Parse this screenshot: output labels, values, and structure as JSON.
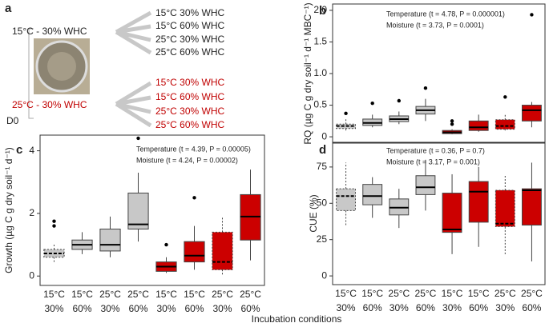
{
  "diagram": {
    "label": "a",
    "start": "D0",
    "sources": [
      "15°C - 30% WHC",
      "25°C - 30% WHC"
    ],
    "targets": [
      [
        "15°C 30% WHC",
        "15°C 60% WHC",
        "25°C 30% WHC",
        "25°C 60% WHC"
      ],
      [
        "15°C 30% WHC",
        "15°C 60% WHC",
        "25°C 30% WHC",
        "25°C 60% WHC"
      ]
    ]
  },
  "figure_xlabel": "Incubation conditions",
  "chart_data": [
    {
      "type": "box",
      "panel": "b",
      "ylabel": "RQ (µg C g dry soil⁻¹ d⁻¹ MBC⁻¹)",
      "annotations": [
        "Temperature (t = 4.78, P = 0.000001)",
        "Moisture (t = 3.73, P = 0.0001)"
      ],
      "ylim": [
        -0.1,
        2.1
      ],
      "yticks": [
        0,
        0.5,
        {
          "value": 1,
          "label": "1.0"
        },
        1.5,
        {
          "value": 2,
          "label": "2.0"
        }
      ],
      "boxes": [
        {
          "min": 0.1,
          "q1": 0.13,
          "median": 0.17,
          "q3": 0.2,
          "max": 0.28,
          "outliers": [
            0.37
          ],
          "color": "#c8c8c8",
          "dashed": true
        },
        {
          "min": 0.15,
          "q1": 0.18,
          "median": 0.22,
          "q3": 0.28,
          "max": 0.35,
          "outliers": [
            0.53
          ],
          "color": "#c8c8c8",
          "dashed": false
        },
        {
          "min": 0.2,
          "q1": 0.24,
          "median": 0.28,
          "q3": 0.33,
          "max": 0.4,
          "outliers": [
            0.57
          ],
          "color": "#c8c8c8",
          "dashed": false
        },
        {
          "min": 0.25,
          "q1": 0.36,
          "median": 0.42,
          "q3": 0.48,
          "max": 0.6,
          "outliers": [
            0.77
          ],
          "color": "#c8c8c8",
          "dashed": false
        },
        {
          "min": 0.04,
          "q1": 0.05,
          "median": 0.07,
          "q3": 0.1,
          "max": 0.12,
          "outliers": [
            0.2,
            0.25
          ],
          "color": "#cc0000",
          "dashed": false
        },
        {
          "min": 0.08,
          "q1": 0.1,
          "median": 0.15,
          "q3": 0.25,
          "max": 0.35,
          "outliers": [],
          "color": "#cc0000",
          "dashed": false
        },
        {
          "min": 0.1,
          "q1": 0.12,
          "median": 0.17,
          "q3": 0.27,
          "max": 0.35,
          "outliers": [
            0.63
          ],
          "color": "#cc0000",
          "dashed": true
        },
        {
          "min": 0.15,
          "q1": 0.25,
          "median": 0.42,
          "q3": 0.5,
          "max": 0.55,
          "outliers": [
            1.93
          ],
          "color": "#cc0000",
          "dashed": false
        }
      ]
    },
    {
      "type": "box",
      "panel": "c",
      "ylabel": "Growth (µg C g dry soil⁻¹ d⁻¹)",
      "annotations": [
        "Temperature (t = 4.39, P = 0.00005)",
        "Moisture (t = 4.24, P = 0.00002)"
      ],
      "ylim": [
        -0.3,
        4.5
      ],
      "yticks": [
        0,
        2,
        4
      ],
      "categories": [
        [
          "15°C",
          "30%"
        ],
        [
          "15°C",
          "60%"
        ],
        [
          "25°C",
          "30%"
        ],
        [
          "25°C",
          "60%"
        ],
        [
          "15°C",
          "30%"
        ],
        [
          "15°C",
          "60%"
        ],
        [
          "25°C",
          "30%"
        ],
        [
          "25°C",
          "60%"
        ]
      ],
      "boxes": [
        {
          "min": 0.45,
          "q1": 0.6,
          "median": 0.72,
          "q3": 0.85,
          "max": 1.05,
          "outliers": [
            1.6,
            1.75
          ],
          "color": "#c8c8c8",
          "dashed": true
        },
        {
          "min": 0.7,
          "q1": 0.85,
          "median": 1.0,
          "q3": 1.15,
          "max": 1.4,
          "outliers": [],
          "color": "#c8c8c8",
          "dashed": false
        },
        {
          "min": 0.6,
          "q1": 0.8,
          "median": 1.0,
          "q3": 1.5,
          "max": 1.9,
          "outliers": [],
          "color": "#c8c8c8",
          "dashed": false
        },
        {
          "min": 1.1,
          "q1": 1.5,
          "median": 1.65,
          "q3": 2.65,
          "max": 3.3,
          "outliers": [
            4.4
          ],
          "color": "#c8c8c8",
          "dashed": false
        },
        {
          "min": 0.1,
          "q1": 0.15,
          "median": 0.3,
          "q3": 0.45,
          "max": 0.6,
          "outliers": [
            1.0
          ],
          "color": "#cc0000",
          "dashed": false
        },
        {
          "min": 0.2,
          "q1": 0.45,
          "median": 0.65,
          "q3": 1.1,
          "max": 1.6,
          "outliers": [
            2.5
          ],
          "color": "#cc0000",
          "dashed": false
        },
        {
          "min": 0.05,
          "q1": 0.2,
          "median": 0.45,
          "q3": 1.4,
          "max": 1.9,
          "outliers": [],
          "color": "#cc0000",
          "dashed": true
        },
        {
          "min": 0.5,
          "q1": 1.15,
          "median": 1.9,
          "q3": 2.6,
          "max": 3.4,
          "outliers": [],
          "color": "#cc0000",
          "dashed": false
        }
      ]
    },
    {
      "type": "box",
      "panel": "d",
      "ylabel": "CUE (%)",
      "annotations": [
        "Temperature (t = 0.36, P = 0.7)",
        "Moisture (t = 3.17, P = 0.001)"
      ],
      "ylim": [
        -6,
        92
      ],
      "yticks": [
        0,
        25,
        50,
        75
      ],
      "categories": [
        [
          "15°C",
          "30%"
        ],
        [
          "15°C",
          "60%"
        ],
        [
          "25°C",
          "30%"
        ],
        [
          "25°C",
          "60%"
        ],
        [
          "15°C",
          "30%"
        ],
        [
          "15°C",
          "60%"
        ],
        [
          "25°C",
          "30%"
        ],
        [
          "25°C",
          "60%"
        ]
      ],
      "boxes": [
        {
          "min": 35,
          "q1": 45,
          "median": 55,
          "q3": 60,
          "max": 78,
          "outliers": [],
          "color": "#c8c8c8",
          "dashed": true
        },
        {
          "min": 40,
          "q1": 49,
          "median": 55,
          "q3": 63,
          "max": 68,
          "outliers": [],
          "color": "#c8c8c8",
          "dashed": false
        },
        {
          "min": 33,
          "q1": 42,
          "median": 47,
          "q3": 53,
          "max": 60,
          "outliers": [],
          "color": "#c8c8c8",
          "dashed": false
        },
        {
          "min": 45,
          "q1": 56,
          "median": 61,
          "q3": 69,
          "max": 80,
          "outliers": [],
          "color": "#c8c8c8",
          "dashed": false
        },
        {
          "min": 15,
          "q1": 30,
          "median": 32,
          "q3": 57,
          "max": 70,
          "outliers": [],
          "color": "#cc0000",
          "dashed": false
        },
        {
          "min": 20,
          "q1": 37,
          "median": 58,
          "q3": 65,
          "max": 75,
          "outliers": [],
          "color": "#cc0000",
          "dashed": false
        },
        {
          "min": 15,
          "q1": 34,
          "median": 36,
          "q3": 59,
          "max": 70,
          "outliers": [],
          "color": "#cc0000",
          "dashed": true
        },
        {
          "min": 10,
          "q1": 35,
          "median": 59,
          "q3": 60,
          "max": 78,
          "outliers": [],
          "color": "#cc0000",
          "dashed": false
        }
      ]
    }
  ]
}
